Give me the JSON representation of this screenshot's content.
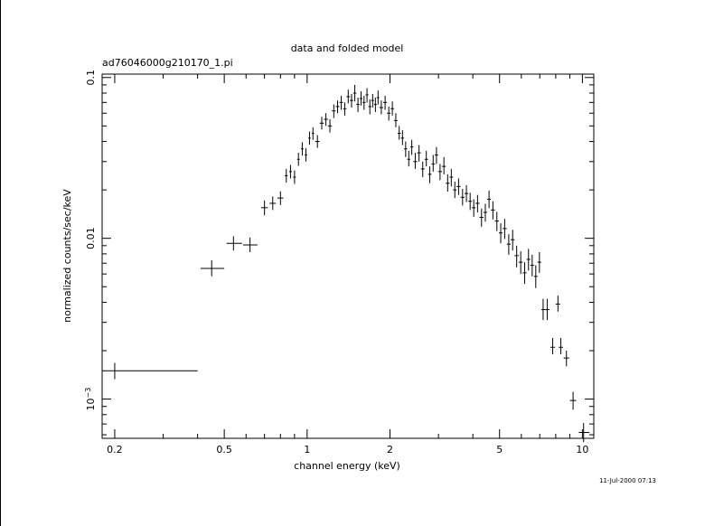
{
  "chart_data": {
    "type": "scatter",
    "title": "data and folded model",
    "subtitle": "ad76046000g210170_1.pi",
    "xlabel": "channel energy (keV)",
    "ylabel": "normalized counts/sec/keV",
    "xscale": "log",
    "yscale": "log",
    "xlim": [
      0.18,
      11.0
    ],
    "ylim": [
      0.00057,
      0.105
    ],
    "x_ticks": [
      {
        "value": 0.2,
        "label": "0.2"
      },
      {
        "value": 0.5,
        "label": "0.5"
      },
      {
        "value": 1,
        "label": "1"
      },
      {
        "value": 2,
        "label": "2"
      },
      {
        "value": 5,
        "label": "5"
      },
      {
        "value": 10,
        "label": "10"
      }
    ],
    "y_ticks": [
      {
        "value": 0.1,
        "label": "0.1",
        "sup": ""
      },
      {
        "value": 0.01,
        "label": "0.01",
        "sup": ""
      },
      {
        "value": 0.001,
        "label": "10",
        "sup": "−3"
      }
    ],
    "grid": false,
    "timestamp": "11-Jul-2000 07:13",
    "series": [
      {
        "style": "crosses with error bars",
        "points": [
          {
            "x": 0.2,
            "xlo": 0.18,
            "xhi": 0.4,
            "y": 0.0015,
            "ylo": 0.00133,
            "yhi": 0.00168
          },
          {
            "x": 0.45,
            "xlo": 0.41,
            "xhi": 0.5,
            "y": 0.0065,
            "ylo": 0.0058,
            "yhi": 0.0073
          },
          {
            "x": 0.54,
            "xlo": 0.51,
            "xhi": 0.58,
            "y": 0.0093,
            "ylo": 0.0084,
            "yhi": 0.0103
          },
          {
            "x": 0.62,
            "xlo": 0.585,
            "xhi": 0.66,
            "y": 0.0091,
            "ylo": 0.0082,
            "yhi": 0.0101
          },
          {
            "x": 0.7,
            "xlo": 0.68,
            "xhi": 0.72,
            "y": 0.0155,
            "ylo": 0.0139,
            "yhi": 0.0172
          },
          {
            "x": 0.75,
            "xlo": 0.73,
            "xhi": 0.77,
            "y": 0.0165,
            "ylo": 0.015,
            "yhi": 0.0182
          },
          {
            "x": 0.8,
            "xlo": 0.78,
            "xhi": 0.82,
            "y": 0.0178,
            "ylo": 0.0161,
            "yhi": 0.0196
          },
          {
            "x": 0.84,
            "xlo": 0.83,
            "xhi": 0.85,
            "y": 0.0245,
            "ylo": 0.0222,
            "yhi": 0.027
          },
          {
            "x": 0.87,
            "xlo": 0.86,
            "xhi": 0.88,
            "y": 0.026,
            "ylo": 0.0236,
            "yhi": 0.0286
          },
          {
            "x": 0.9,
            "xlo": 0.89,
            "xhi": 0.91,
            "y": 0.024,
            "ylo": 0.0218,
            "yhi": 0.0264
          },
          {
            "x": 0.93,
            "xlo": 0.92,
            "xhi": 0.94,
            "y": 0.031,
            "ylo": 0.0282,
            "yhi": 0.0341
          },
          {
            "x": 0.96,
            "xlo": 0.95,
            "xhi": 0.97,
            "y": 0.036,
            "ylo": 0.0327,
            "yhi": 0.0396
          },
          {
            "x": 0.99,
            "xlo": 0.98,
            "xhi": 1.0,
            "y": 0.033,
            "ylo": 0.03,
            "yhi": 0.0363
          },
          {
            "x": 1.02,
            "xlo": 1.01,
            "xhi": 1.03,
            "y": 0.042,
            "ylo": 0.0382,
            "yhi": 0.0462
          },
          {
            "x": 1.05,
            "xlo": 1.04,
            "xhi": 1.06,
            "y": 0.045,
            "ylo": 0.041,
            "yhi": 0.049
          },
          {
            "x": 1.09,
            "xlo": 1.07,
            "xhi": 1.11,
            "y": 0.04,
            "ylo": 0.0365,
            "yhi": 0.0438
          },
          {
            "x": 1.13,
            "xlo": 1.11,
            "xhi": 1.15,
            "y": 0.052,
            "ylo": 0.0475,
            "yhi": 0.057
          },
          {
            "x": 1.17,
            "xlo": 1.15,
            "xhi": 1.19,
            "y": 0.055,
            "ylo": 0.05,
            "yhi": 0.06
          },
          {
            "x": 1.21,
            "xlo": 1.19,
            "xhi": 1.23,
            "y": 0.05,
            "ylo": 0.0455,
            "yhi": 0.055
          },
          {
            "x": 1.25,
            "xlo": 1.23,
            "xhi": 1.27,
            "y": 0.062,
            "ylo": 0.056,
            "yhi": 0.068
          },
          {
            "x": 1.29,
            "xlo": 1.27,
            "xhi": 1.31,
            "y": 0.066,
            "ylo": 0.06,
            "yhi": 0.072
          },
          {
            "x": 1.33,
            "xlo": 1.31,
            "xhi": 1.35,
            "y": 0.07,
            "ylo": 0.063,
            "yhi": 0.077
          },
          {
            "x": 1.37,
            "xlo": 1.35,
            "xhi": 1.39,
            "y": 0.064,
            "ylo": 0.058,
            "yhi": 0.07
          },
          {
            "x": 1.41,
            "xlo": 1.39,
            "xhi": 1.43,
            "y": 0.076,
            "ylo": 0.069,
            "yhi": 0.084
          },
          {
            "x": 1.45,
            "xlo": 1.43,
            "xhi": 1.47,
            "y": 0.072,
            "ylo": 0.065,
            "yhi": 0.079
          },
          {
            "x": 1.49,
            "xlo": 1.47,
            "xhi": 1.51,
            "y": 0.08,
            "ylo": 0.071,
            "yhi": 0.09
          },
          {
            "x": 1.53,
            "xlo": 1.51,
            "xhi": 1.55,
            "y": 0.068,
            "ylo": 0.061,
            "yhi": 0.075
          },
          {
            "x": 1.57,
            "xlo": 1.55,
            "xhi": 1.59,
            "y": 0.074,
            "ylo": 0.067,
            "yhi": 0.082
          },
          {
            "x": 1.61,
            "xlo": 1.59,
            "xhi": 1.63,
            "y": 0.07,
            "ylo": 0.063,
            "yhi": 0.077
          },
          {
            "x": 1.65,
            "xlo": 1.63,
            "xhi": 1.67,
            "y": 0.078,
            "ylo": 0.07,
            "yhi": 0.086
          },
          {
            "x": 1.69,
            "xlo": 1.67,
            "xhi": 1.71,
            "y": 0.066,
            "ylo": 0.059,
            "yhi": 0.073
          },
          {
            "x": 1.73,
            "xlo": 1.71,
            "xhi": 1.75,
            "y": 0.072,
            "ylo": 0.065,
            "yhi": 0.079
          },
          {
            "x": 1.77,
            "xlo": 1.75,
            "xhi": 1.79,
            "y": 0.068,
            "ylo": 0.061,
            "yhi": 0.075
          },
          {
            "x": 1.81,
            "xlo": 1.79,
            "xhi": 1.83,
            "y": 0.075,
            "ylo": 0.068,
            "yhi": 0.083
          },
          {
            "x": 1.86,
            "xlo": 1.83,
            "xhi": 1.89,
            "y": 0.065,
            "ylo": 0.059,
            "yhi": 0.072
          },
          {
            "x": 1.92,
            "xlo": 1.89,
            "xhi": 1.95,
            "y": 0.07,
            "ylo": 0.063,
            "yhi": 0.077
          },
          {
            "x": 1.98,
            "xlo": 1.95,
            "xhi": 2.01,
            "y": 0.06,
            "ylo": 0.054,
            "yhi": 0.066
          },
          {
            "x": 2.04,
            "xlo": 2.01,
            "xhi": 2.07,
            "y": 0.064,
            "ylo": 0.058,
            "yhi": 0.071
          },
          {
            "x": 2.1,
            "xlo": 2.07,
            "xhi": 2.13,
            "y": 0.054,
            "ylo": 0.049,
            "yhi": 0.06
          },
          {
            "x": 2.16,
            "xlo": 2.13,
            "xhi": 2.19,
            "y": 0.045,
            "ylo": 0.041,
            "yhi": 0.05
          },
          {
            "x": 2.22,
            "xlo": 2.19,
            "xhi": 2.25,
            "y": 0.042,
            "ylo": 0.038,
            "yhi": 0.047
          },
          {
            "x": 2.28,
            "xlo": 2.25,
            "xhi": 2.31,
            "y": 0.036,
            "ylo": 0.032,
            "yhi": 0.04
          },
          {
            "x": 2.34,
            "xlo": 2.31,
            "xhi": 2.37,
            "y": 0.031,
            "ylo": 0.028,
            "yhi": 0.035
          },
          {
            "x": 2.4,
            "xlo": 2.37,
            "xhi": 2.43,
            "y": 0.037,
            "ylo": 0.033,
            "yhi": 0.041
          },
          {
            "x": 2.47,
            "xlo": 2.43,
            "xhi": 2.51,
            "y": 0.03,
            "ylo": 0.027,
            "yhi": 0.034
          },
          {
            "x": 2.55,
            "xlo": 2.51,
            "xhi": 2.59,
            "y": 0.034,
            "ylo": 0.03,
            "yhi": 0.038
          },
          {
            "x": 2.63,
            "xlo": 2.59,
            "xhi": 2.67,
            "y": 0.027,
            "ylo": 0.024,
            "yhi": 0.03
          },
          {
            "x": 2.71,
            "xlo": 2.67,
            "xhi": 2.75,
            "y": 0.031,
            "ylo": 0.028,
            "yhi": 0.035
          },
          {
            "x": 2.79,
            "xlo": 2.75,
            "xhi": 2.83,
            "y": 0.025,
            "ylo": 0.022,
            "yhi": 0.028
          },
          {
            "x": 2.87,
            "xlo": 2.83,
            "xhi": 2.91,
            "y": 0.029,
            "ylo": 0.026,
            "yhi": 0.033
          },
          {
            "x": 2.95,
            "xlo": 2.91,
            "xhi": 2.99,
            "y": 0.033,
            "ylo": 0.029,
            "yhi": 0.037
          },
          {
            "x": 3.04,
            "xlo": 2.99,
            "xhi": 3.09,
            "y": 0.026,
            "ylo": 0.023,
            "yhi": 0.029
          },
          {
            "x": 3.14,
            "xlo": 3.09,
            "xhi": 3.19,
            "y": 0.028,
            "ylo": 0.025,
            "yhi": 0.032
          },
          {
            "x": 3.24,
            "xlo": 3.19,
            "xhi": 3.29,
            "y": 0.022,
            "ylo": 0.0195,
            "yhi": 0.025
          },
          {
            "x": 3.34,
            "xlo": 3.29,
            "xhi": 3.39,
            "y": 0.024,
            "ylo": 0.021,
            "yhi": 0.027
          },
          {
            "x": 3.44,
            "xlo": 3.39,
            "xhi": 3.49,
            "y": 0.02,
            "ylo": 0.0178,
            "yhi": 0.0225
          },
          {
            "x": 3.55,
            "xlo": 3.49,
            "xhi": 3.61,
            "y": 0.021,
            "ylo": 0.0186,
            "yhi": 0.0236
          },
          {
            "x": 3.67,
            "xlo": 3.61,
            "xhi": 3.73,
            "y": 0.018,
            "ylo": 0.016,
            "yhi": 0.0203
          },
          {
            "x": 3.79,
            "xlo": 3.73,
            "xhi": 3.85,
            "y": 0.019,
            "ylo": 0.0168,
            "yhi": 0.0214
          },
          {
            "x": 3.91,
            "xlo": 3.85,
            "xhi": 3.97,
            "y": 0.017,
            "ylo": 0.015,
            "yhi": 0.0192
          },
          {
            "x": 4.03,
            "xlo": 3.97,
            "xhi": 4.09,
            "y": 0.0155,
            "ylo": 0.0136,
            "yhi": 0.0175
          },
          {
            "x": 4.16,
            "xlo": 4.09,
            "xhi": 4.23,
            "y": 0.0165,
            "ylo": 0.0145,
            "yhi": 0.0186
          },
          {
            "x": 4.3,
            "xlo": 4.23,
            "xhi": 4.37,
            "y": 0.0135,
            "ylo": 0.0118,
            "yhi": 0.0153
          },
          {
            "x": 4.44,
            "xlo": 4.37,
            "xhi": 4.51,
            "y": 0.0145,
            "ylo": 0.0127,
            "yhi": 0.0164
          },
          {
            "x": 4.58,
            "xlo": 4.51,
            "xhi": 4.65,
            "y": 0.0175,
            "ylo": 0.0154,
            "yhi": 0.0198
          },
          {
            "x": 4.73,
            "xlo": 4.65,
            "xhi": 4.81,
            "y": 0.015,
            "ylo": 0.0131,
            "yhi": 0.017
          },
          {
            "x": 4.89,
            "xlo": 4.81,
            "xhi": 4.97,
            "y": 0.0128,
            "ylo": 0.0111,
            "yhi": 0.0146
          },
          {
            "x": 5.05,
            "xlo": 4.97,
            "xhi": 5.13,
            "y": 0.0108,
            "ylo": 0.0093,
            "yhi": 0.0124
          },
          {
            "x": 5.22,
            "xlo": 5.13,
            "xhi": 5.31,
            "y": 0.0115,
            "ylo": 0.0099,
            "yhi": 0.0132
          },
          {
            "x": 5.4,
            "xlo": 5.31,
            "xhi": 5.49,
            "y": 0.0092,
            "ylo": 0.0079,
            "yhi": 0.0106
          },
          {
            "x": 5.58,
            "xlo": 5.49,
            "xhi": 5.67,
            "y": 0.0098,
            "ylo": 0.0084,
            "yhi": 0.0113
          },
          {
            "x": 5.77,
            "xlo": 5.67,
            "xhi": 5.87,
            "y": 0.0078,
            "ylo": 0.0066,
            "yhi": 0.009
          },
          {
            "x": 5.97,
            "xlo": 5.87,
            "xhi": 6.07,
            "y": 0.0071,
            "ylo": 0.006,
            "yhi": 0.0083
          },
          {
            "x": 6.17,
            "xlo": 6.07,
            "xhi": 6.27,
            "y": 0.0061,
            "ylo": 0.0052,
            "yhi": 0.0071
          },
          {
            "x": 6.37,
            "xlo": 6.27,
            "xhi": 6.47,
            "y": 0.0074,
            "ylo": 0.0063,
            "yhi": 0.0086
          },
          {
            "x": 6.57,
            "xlo": 6.47,
            "xhi": 6.67,
            "y": 0.0068,
            "ylo": 0.0058,
            "yhi": 0.0079
          },
          {
            "x": 6.77,
            "xlo": 6.67,
            "xhi": 6.87,
            "y": 0.0058,
            "ylo": 0.0049,
            "yhi": 0.0068
          },
          {
            "x": 6.98,
            "xlo": 6.87,
            "xhi": 7.09,
            "y": 0.0071,
            "ylo": 0.0061,
            "yhi": 0.0082
          },
          {
            "x": 7.2,
            "xlo": 7.09,
            "xhi": 7.31,
            "y": 0.0036,
            "ylo": 0.0031,
            "yhi": 0.0042
          },
          {
            "x": 7.45,
            "xlo": 7.31,
            "xhi": 7.6,
            "y": 0.0036,
            "ylo": 0.0031,
            "yhi": 0.0042
          },
          {
            "x": 7.8,
            "xlo": 7.65,
            "xhi": 7.95,
            "y": 0.0021,
            "ylo": 0.0019,
            "yhi": 0.0024
          },
          {
            "x": 8.15,
            "xlo": 8.0,
            "xhi": 8.3,
            "y": 0.0039,
            "ylo": 0.0035,
            "yhi": 0.0044
          },
          {
            "x": 8.35,
            "xlo": 8.2,
            "xhi": 8.5,
            "y": 0.0021,
            "ylo": 0.0019,
            "yhi": 0.0024
          },
          {
            "x": 8.75,
            "xlo": 8.55,
            "xhi": 8.95,
            "y": 0.0018,
            "ylo": 0.0016,
            "yhi": 0.002
          },
          {
            "x": 9.25,
            "xlo": 9.0,
            "xhi": 9.5,
            "y": 0.00098,
            "ylo": 0.00086,
            "yhi": 0.00111
          },
          {
            "x": 10.1,
            "xlo": 9.7,
            "xhi": 10.6,
            "y": 0.00062,
            "ylo": 0.00054,
            "yhi": 0.00071
          }
        ]
      }
    ]
  }
}
